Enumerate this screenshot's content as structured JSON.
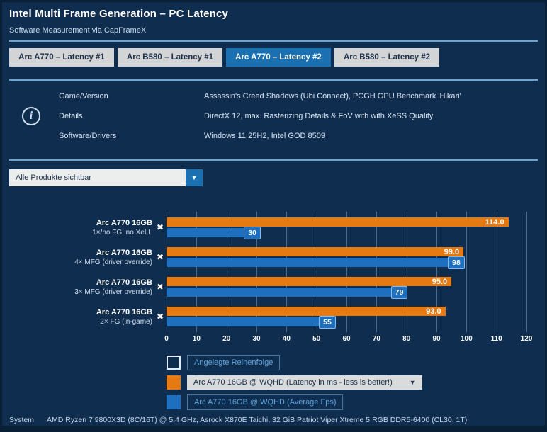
{
  "colors": {
    "panel_bg": "#0f2d4e",
    "accent_blue": "#1a70b0",
    "latency_orange": "#e67a12",
    "fps_blue": "#1e6fbe",
    "divider_blue": "#6ea6d2"
  },
  "icons": {
    "info": "i",
    "close": "✖",
    "dropdown": "▼"
  },
  "header": {
    "title": "Intel Multi Frame Generation – PC Latency",
    "subtitle": "Software Measurement via CapFrameX"
  },
  "tabs": [
    {
      "label": "Arc A770 – Latency #1",
      "active": false
    },
    {
      "label": "Arc B580 – Latency #1",
      "active": false
    },
    {
      "label": "Arc A770 – Latency #2",
      "active": true
    },
    {
      "label": "Arc B580 – Latency #2",
      "active": false
    }
  ],
  "info": {
    "rows": [
      {
        "label": "Game/Version",
        "value": "Assassin's Creed Shadows (Ubi Connect), PCGH GPU Benchmark 'Hikari'"
      },
      {
        "label": "Details",
        "value": "DirectX 12, max. Rasterizing Details & FoV with with XeSS Quality"
      },
      {
        "label": "Software/Drivers",
        "value": "Windows 11 25H2, Intel GOD 8509"
      }
    ]
  },
  "filter": {
    "selected": "Alle Produkte sichtbar"
  },
  "chart_data": {
    "type": "bar",
    "orientation": "horizontal",
    "axis": {
      "min": 0,
      "max": 120,
      "step": 10
    },
    "grid": true,
    "legend_position": "bottom",
    "groups": [
      {
        "name": "Arc A770 16GB",
        "variant": "1×/no FG, no XeLL",
        "latency_ms": 114.0,
        "latency_label": "114.0",
        "avg_fps": 30
      },
      {
        "name": "Arc A770 16GB",
        "variant": "4× MFG (driver override)",
        "latency_ms": 99.0,
        "latency_label": "99.0",
        "avg_fps": 98
      },
      {
        "name": "Arc A770 16GB",
        "variant": "3× MFG (driver override)",
        "latency_ms": 95.0,
        "latency_label": "95.0",
        "avg_fps": 79
      },
      {
        "name": "Arc A770 16GB",
        "variant": "2× FG (in-game)",
        "latency_ms": 93.0,
        "latency_label": "93.0",
        "avg_fps": 55
      }
    ],
    "series": [
      {
        "name": "Arc A770 16GB @ WQHD (Latency in ms - less is better!)",
        "color": "#e67a12",
        "values": [
          114.0,
          99.0,
          95.0,
          93.0
        ]
      },
      {
        "name": "Arc A770 16GB @ WQHD (Average Fps)",
        "color": "#1e6fbe",
        "values": [
          30,
          98,
          79,
          55
        ]
      }
    ],
    "legend": [
      {
        "label": "Angelegte Reihenfolge"
      },
      {
        "label": "Arc A770 16GB @ WQHD (Latency in ms - less is better!)"
      },
      {
        "label": "Arc A770 16GB @ WQHD (Average Fps)"
      }
    ]
  },
  "footer": {
    "label": "System",
    "value": "AMD Ryzen 7 9800X3D (8C/16T) @ 5,4 GHz, Asrock X870E Taichi, 32 GiB Patriot Viper Xtreme 5 RGB DDR5-6400 (CL30, 1T)"
  }
}
